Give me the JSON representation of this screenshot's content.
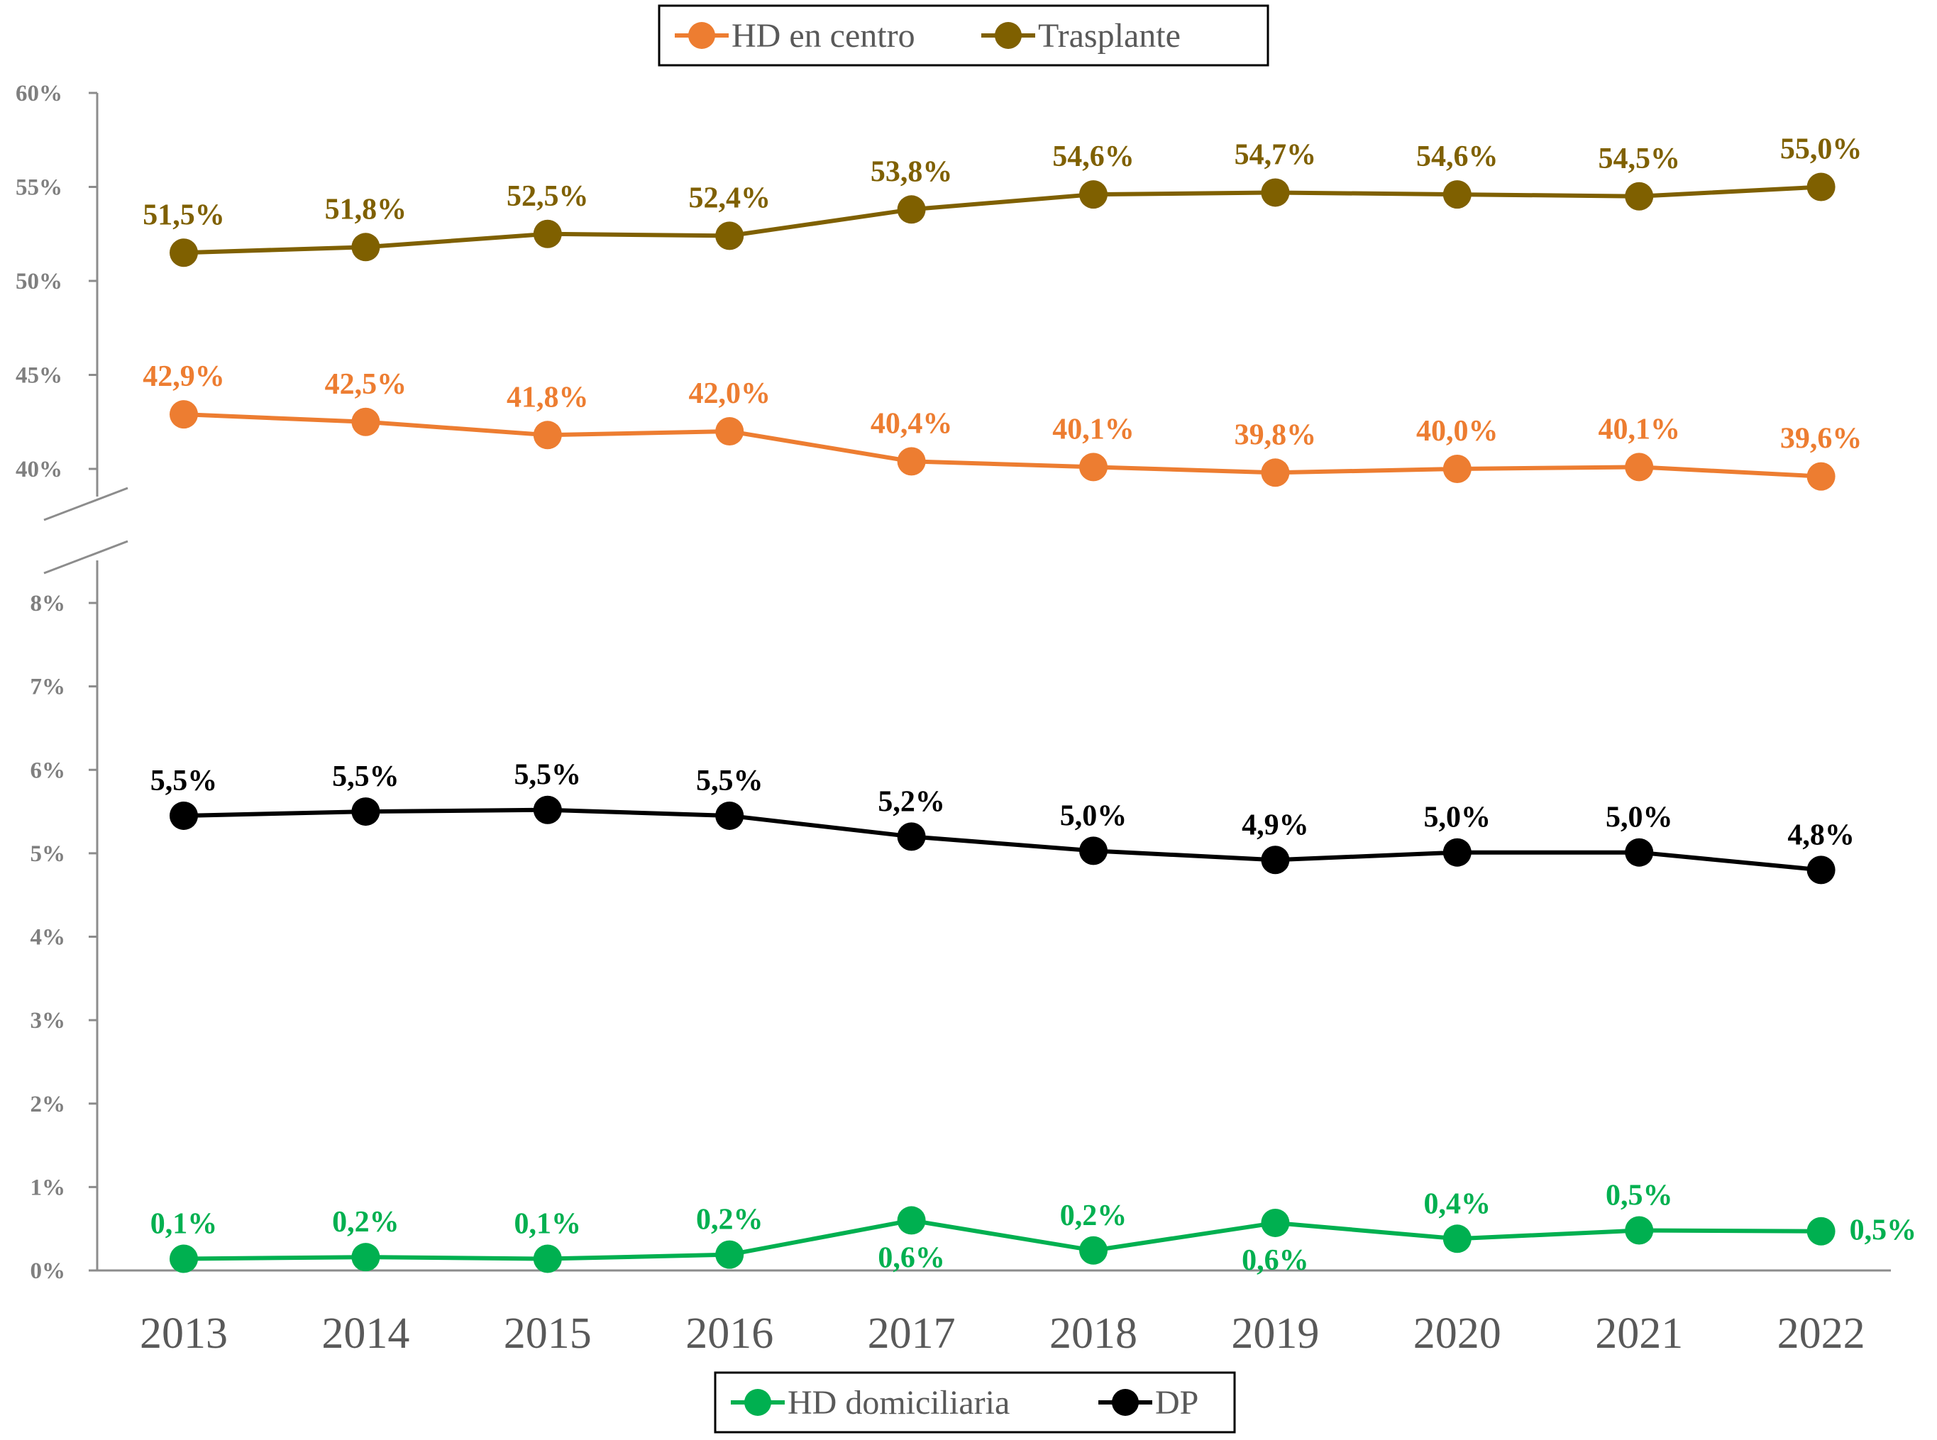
{
  "chart_data": {
    "type": "line",
    "x": [
      "2013",
      "2014",
      "2015",
      "2016",
      "2017",
      "2018",
      "2019",
      "2020",
      "2021",
      "2022"
    ],
    "series": [
      {
        "name": "HD en centro",
        "color": "#ed7d31",
        "values": [
          42.9,
          42.5,
          41.8,
          42.0,
          40.4,
          40.1,
          39.8,
          40.0,
          40.1,
          39.6
        ],
        "labels": [
          "42,9%",
          "42,5%",
          "41,8%",
          "42,0%",
          "40,4%",
          "40,1%",
          "39,8%",
          "40,0%",
          "40,1%",
          "39,6%"
        ]
      },
      {
        "name": "Trasplante",
        "color": "#7f6000",
        "values": [
          51.5,
          51.8,
          52.5,
          52.4,
          53.8,
          54.6,
          54.7,
          54.6,
          54.5,
          55.0
        ],
        "labels": [
          "51,5%",
          "51,8%",
          "52,5%",
          "52,4%",
          "53,8%",
          "54,6%",
          "54,7%",
          "54,6%",
          "54,5%",
          "55,0%"
        ]
      },
      {
        "name": "HD domiciliaria",
        "color": "#00b050",
        "values": [
          0.14,
          0.16,
          0.14,
          0.19,
          0.6,
          0.24,
          0.57,
          0.38,
          0.48,
          0.47
        ],
        "labels": [
          "0,1%",
          "0,2%",
          "0,1%",
          "0,2%",
          "0,6%",
          "0,2%",
          "0,6%",
          "0,4%",
          "0,5%",
          "0,5%"
        ]
      },
      {
        "name": "DP",
        "color": "#000000",
        "values": [
          5.45,
          5.5,
          5.52,
          5.45,
          5.2,
          5.03,
          4.92,
          5.01,
          5.01,
          4.8
        ],
        "labels": [
          "5,5%",
          "5,5%",
          "5,5%",
          "5,5%",
          "5,2%",
          "5,0%",
          "4,9%",
          "5,0%",
          "5,0%",
          "4,8%"
        ]
      }
    ],
    "axes": {
      "upper": {
        "ylim": [
          40,
          60
        ],
        "ticks": [
          "40%",
          "45%",
          "50%",
          "55%",
          "60%"
        ],
        "tick_values": [
          40,
          45,
          50,
          55,
          60
        ]
      },
      "lower": {
        "ylim": [
          0,
          8
        ],
        "ticks": [
          "0%",
          "1%",
          "2%",
          "3%",
          "4%",
          "5%",
          "6%",
          "7%",
          "8%"
        ],
        "tick_values": [
          0,
          1,
          2,
          3,
          4,
          5,
          6,
          7,
          8
        ]
      },
      "broken_axis": true
    },
    "legends": [
      {
        "position": "top-center",
        "entries": [
          "HD en centro",
          "Trasplante"
        ]
      },
      {
        "position": "bottom-center",
        "entries": [
          "HD domiciliaria",
          "DP"
        ]
      }
    ],
    "grid": false
  }
}
